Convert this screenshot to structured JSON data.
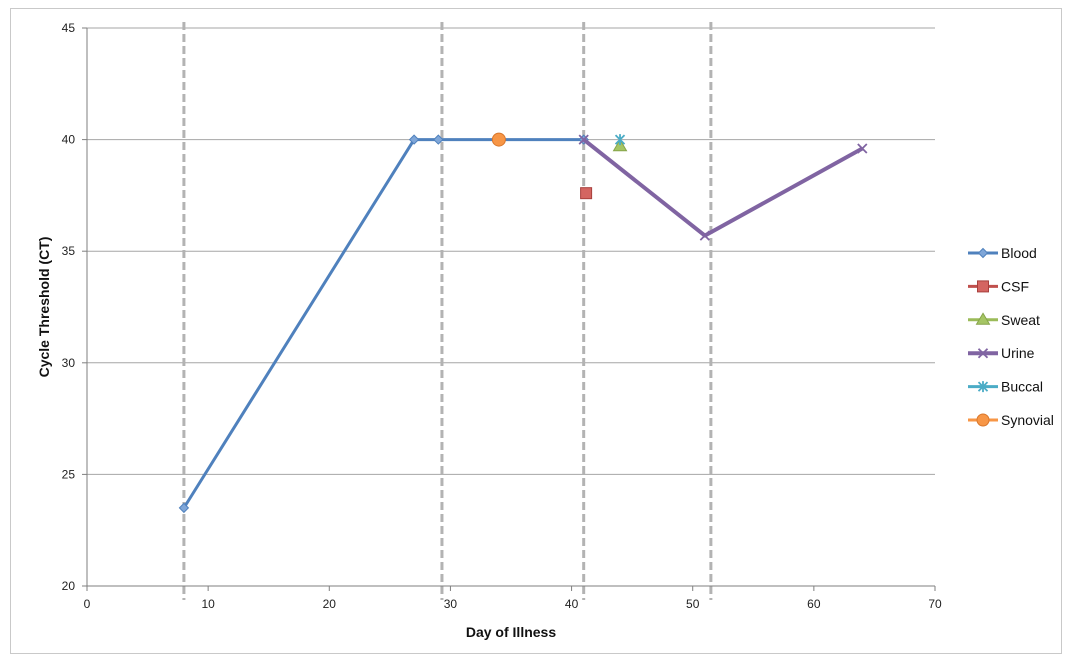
{
  "chart_data": {
    "type": "line",
    "title": "",
    "xlabel": "Day of Illness",
    "ylabel": "Cycle Threshold (CT)",
    "xlim": [
      0,
      70
    ],
    "ylim": [
      20,
      45
    ],
    "x_ticks": [
      0,
      10,
      20,
      30,
      40,
      50,
      60,
      70
    ],
    "y_ticks": [
      20,
      25,
      30,
      35,
      40,
      45
    ],
    "grid": {
      "horizontal": true,
      "vertical": false
    },
    "legend_position": "right",
    "reference_lines_x": [
      8,
      29.3,
      41,
      51.5
    ],
    "series": [
      {
        "name": "Blood",
        "color": "#4f81bd",
        "marker": "diamond",
        "connected": true,
        "points": [
          [
            8,
            23.5
          ],
          [
            27,
            40
          ],
          [
            29,
            40
          ],
          [
            41,
            40
          ]
        ]
      },
      {
        "name": "CSF",
        "color": "#c0504d",
        "marker": "square",
        "connected": false,
        "points": [
          [
            41.2,
            37.6
          ]
        ]
      },
      {
        "name": "Sweat",
        "color": "#9bbb59",
        "marker": "triangle",
        "connected": false,
        "points": [
          [
            44,
            39.7
          ]
        ]
      },
      {
        "name": "Urine",
        "color": "#8064a2",
        "marker": "x",
        "connected": true,
        "points": [
          [
            41,
            40
          ],
          [
            51,
            35.7
          ],
          [
            64,
            39.6
          ]
        ]
      },
      {
        "name": "Buccal",
        "color": "#4bacc6",
        "marker": "asterisk",
        "connected": false,
        "points": [
          [
            44,
            40
          ]
        ]
      },
      {
        "name": "Synovial",
        "color": "#f79646",
        "marker": "circle",
        "connected": false,
        "points": [
          [
            34,
            40
          ]
        ]
      }
    ]
  }
}
